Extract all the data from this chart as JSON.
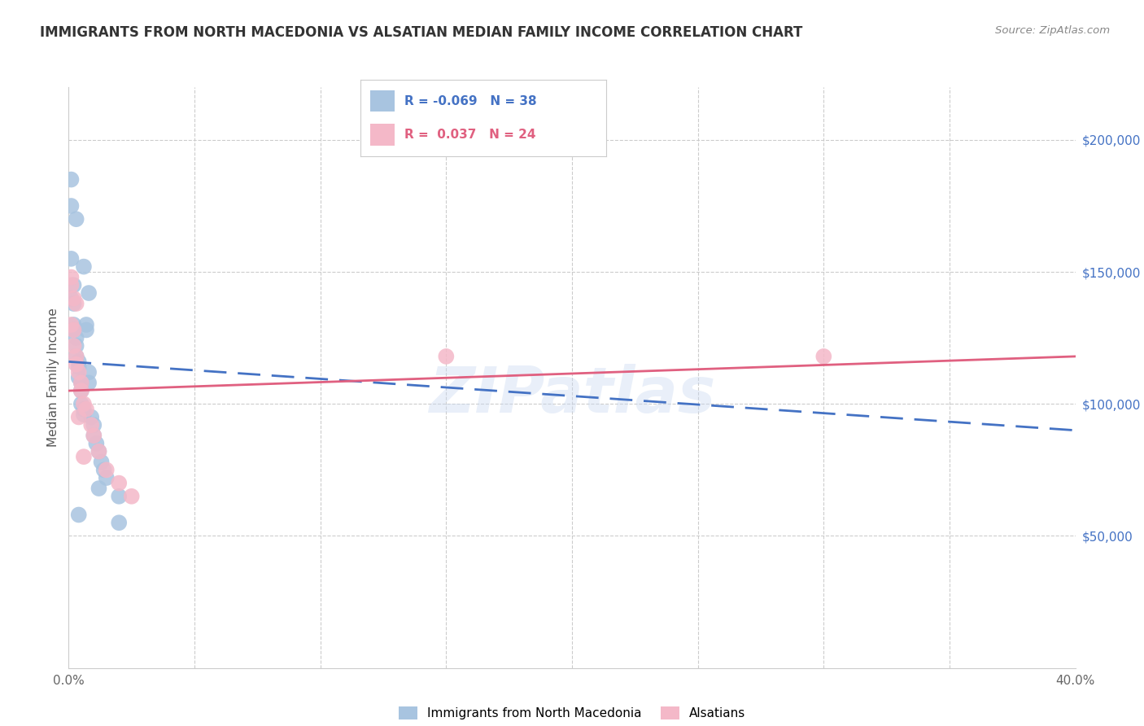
{
  "title": "IMMIGRANTS FROM NORTH MACEDONIA VS ALSATIAN MEDIAN FAMILY INCOME CORRELATION CHART",
  "source": "Source: ZipAtlas.com",
  "ylabel": "Median Family Income",
  "xlim": [
    0,
    0.4
  ],
  "ylim": [
    0,
    220000
  ],
  "blue_R": "-0.069",
  "blue_N": "38",
  "pink_R": "0.037",
  "pink_N": "24",
  "blue_color": "#a8c4e0",
  "pink_color": "#f4b8c8",
  "blue_line_color": "#4472c4",
  "pink_line_color": "#e06080",
  "watermark": "ZIPatlas",
  "blue_line_x": [
    0.0,
    0.4
  ],
  "blue_line_y": [
    116000,
    90000
  ],
  "pink_line_x": [
    0.0,
    0.4
  ],
  "pink_line_y": [
    105000,
    118000
  ],
  "blue_scatter_x": [
    0.001,
    0.001,
    0.001,
    0.002,
    0.002,
    0.002,
    0.003,
    0.003,
    0.003,
    0.004,
    0.004,
    0.004,
    0.005,
    0.005,
    0.005,
    0.006,
    0.006,
    0.007,
    0.007,
    0.008,
    0.008,
    0.009,
    0.01,
    0.01,
    0.011,
    0.012,
    0.013,
    0.014,
    0.015,
    0.003,
    0.002,
    0.001,
    0.02,
    0.004,
    0.006,
    0.008,
    0.012,
    0.02
  ],
  "blue_scatter_y": [
    185000,
    155000,
    175000,
    138000,
    130000,
    128000,
    125000,
    122000,
    118000,
    116000,
    114000,
    110000,
    108000,
    105000,
    100000,
    98000,
    96000,
    130000,
    128000,
    112000,
    108000,
    95000,
    92000,
    88000,
    85000,
    82000,
    78000,
    75000,
    72000,
    170000,
    145000,
    140000,
    65000,
    58000,
    152000,
    142000,
    68000,
    55000
  ],
  "pink_scatter_x": [
    0.001,
    0.001,
    0.002,
    0.002,
    0.003,
    0.003,
    0.004,
    0.005,
    0.005,
    0.006,
    0.007,
    0.009,
    0.01,
    0.012,
    0.015,
    0.02,
    0.025,
    0.003,
    0.001,
    0.002,
    0.004,
    0.006,
    0.15,
    0.3
  ],
  "pink_scatter_y": [
    148000,
    130000,
    128000,
    122000,
    118000,
    115000,
    112000,
    108000,
    105000,
    100000,
    98000,
    92000,
    88000,
    82000,
    75000,
    70000,
    65000,
    138000,
    145000,
    140000,
    95000,
    80000,
    118000,
    118000
  ]
}
